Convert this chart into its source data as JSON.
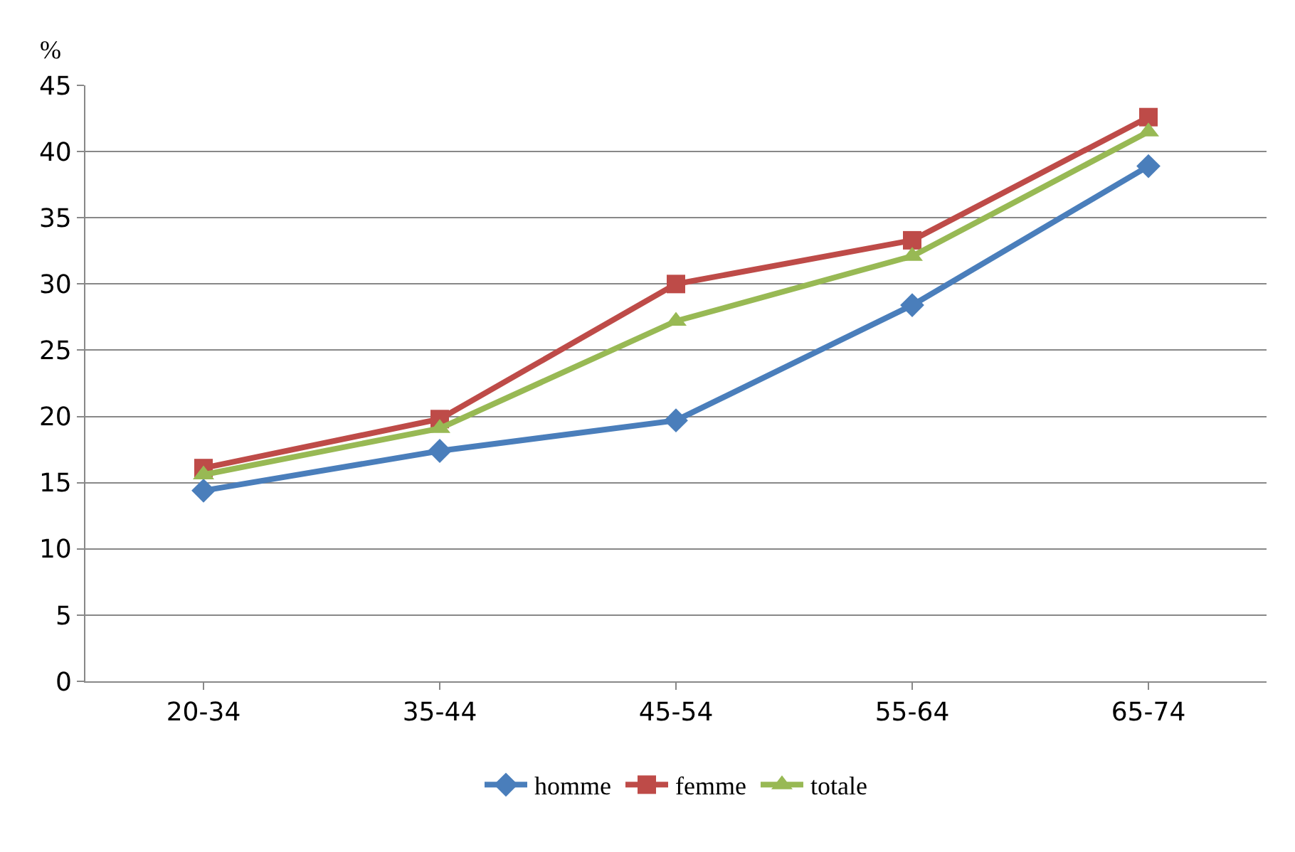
{
  "chart_data": {
    "type": "line",
    "ylabel": "%",
    "categories": [
      "20-34",
      "35-44",
      "45-54",
      "55-64",
      "65-74"
    ],
    "series": [
      {
        "name": "homme",
        "color": "#4a7ebb",
        "marker": "diamond",
        "values": [
          14.4,
          17.4,
          19.7,
          28.4,
          38.9
        ]
      },
      {
        "name": "femme",
        "color": "#be4b48",
        "marker": "square",
        "values": [
          16.1,
          19.8,
          30.0,
          33.3,
          42.6
        ]
      },
      {
        "name": "totale",
        "color": "#98b954",
        "marker": "triangle",
        "values": [
          15.6,
          19.1,
          27.2,
          32.1,
          41.5
        ]
      }
    ],
    "ylim": [
      0,
      45
    ],
    "yticks": [
      0,
      5,
      10,
      15,
      20,
      25,
      30,
      35,
      40,
      45
    ],
    "grid": "y",
    "legend": "bottom",
    "line_style": "solid"
  }
}
